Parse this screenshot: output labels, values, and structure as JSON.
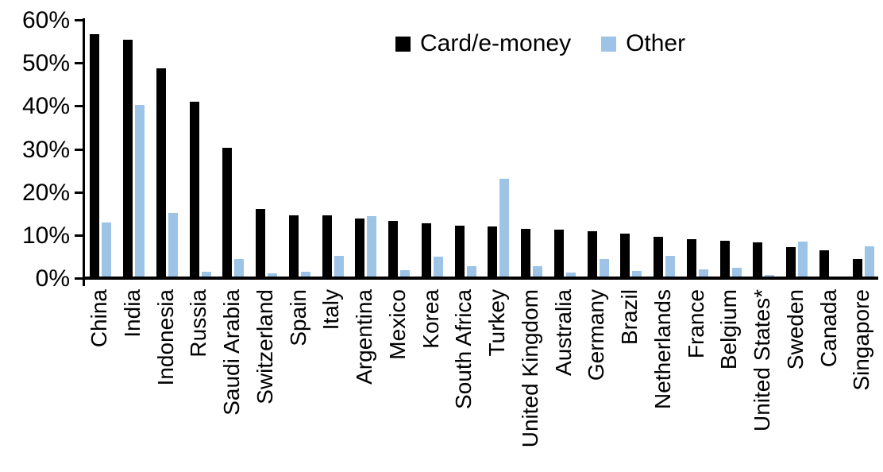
{
  "chart_data": {
    "type": "bar",
    "title": "",
    "xlabel": "",
    "ylabel": "",
    "categories": [
      "China",
      "India",
      "Indonesia",
      "Russia",
      "Saudi Arabia",
      "Switzerland",
      "Spain",
      "Italy",
      "Argentina",
      "Mexico",
      "Korea",
      "South Africa",
      "Turkey",
      "United Kingdom",
      "Australia",
      "Germany",
      "Brazil",
      "Netherlands",
      "France",
      "Belgium",
      "United States*",
      "Sweden",
      "Canada",
      "Singapore"
    ],
    "series": [
      {
        "name": "Card/e-money",
        "color": "#000000",
        "values": [
          56.3,
          55.1,
          48.4,
          40.7,
          30.0,
          15.7,
          14.3,
          14.2,
          13.4,
          13.0,
          12.3,
          11.8,
          11.7,
          11.1,
          10.9,
          10.6,
          10.0,
          9.3,
          8.7,
          8.3,
          8.0,
          6.8,
          6.1,
          4.1
        ]
      },
      {
        "name": "Other",
        "color": "#9DC3E6",
        "values": [
          12.5,
          39.8,
          14.8,
          1.2,
          4.0,
          0.8,
          1.1,
          4.8,
          14.0,
          1.4,
          4.7,
          2.5,
          22.7,
          2.4,
          1.0,
          4.0,
          1.3,
          4.9,
          1.7,
          2.1,
          0.3,
          8.2,
          0.0,
          7.0
        ]
      }
    ],
    "ylim": [
      0,
      60
    ],
    "y_ticks": [
      "60%",
      "50%",
      "40%",
      "30%",
      "20%",
      "10%",
      "0%"
    ],
    "y_tick_values": [
      60,
      50,
      40,
      30,
      20,
      10,
      0
    ],
    "grid": false,
    "legend_position": "top-center",
    "axis_color": "#000000",
    "background_color": "#ffffff"
  }
}
